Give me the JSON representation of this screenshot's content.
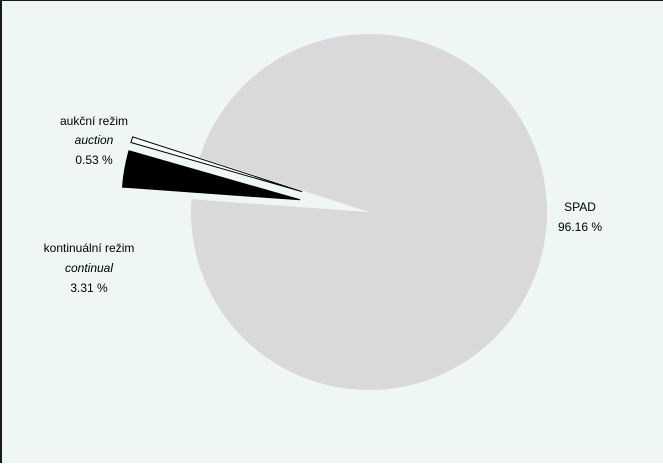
{
  "chart_data": {
    "type": "pie",
    "title": "",
    "slices": [
      {
        "name": "SPAD",
        "value": 96.16,
        "value_label": "96.16 %",
        "color": "#d9d9d9"
      },
      {
        "name": "kontinuální režim",
        "name_en": "continual",
        "value": 3.31,
        "value_label": "3.31 %",
        "color": "#000000"
      },
      {
        "name": "aukční režim",
        "name_en": "auction",
        "value": 0.53,
        "value_label": "0.53 %",
        "color": "#ffffff"
      }
    ],
    "exploded": [
      "kontinuální režim",
      "aukční režim"
    ],
    "legend": "none"
  }
}
